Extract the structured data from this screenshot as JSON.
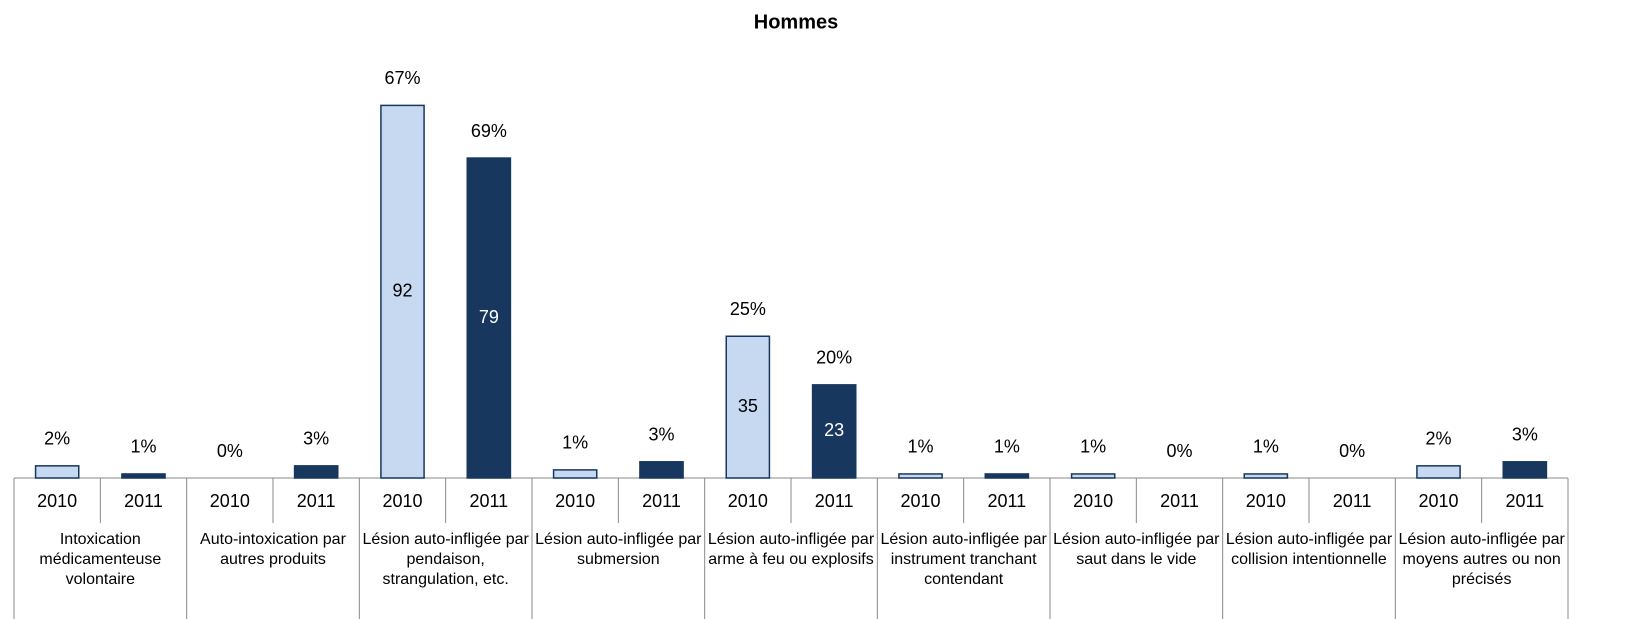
{
  "chart_data": {
    "type": "grouped-bar",
    "title": "Hommes",
    "categories": [
      "Intoxication médicamenteuse volontaire",
      "Auto-intoxication par autres produits",
      "Lésion auto-infligée par pendaison, strangulation, etc.",
      "Lésion auto-infligée par submersion",
      "Lésion auto-infligée par arme à feu ou explosifs",
      "Lésion auto-infligée par instrument tranchant contendant",
      "Lésion auto-infligée par saut dans le vide",
      "Lésion auto-infligée par collision intentionnelle",
      "Lésion auto-infligée par moyens autres ou non précisés"
    ],
    "series": [
      {
        "name": "2010",
        "color": "#c6d9f1",
        "values": [
          3,
          0,
          92,
          2,
          35,
          1,
          1,
          1,
          3
        ],
        "percent_labels": [
          "2%",
          "0%",
          "67%",
          "1%",
          "25%",
          "1%",
          "1%",
          "1%",
          "2%"
        ]
      },
      {
        "name": "2011",
        "color": "#17375e",
        "values": [
          1,
          3,
          79,
          4,
          23,
          1,
          0,
          0,
          4
        ],
        "percent_labels": [
          "1%",
          "3%",
          "69%",
          "3%",
          "20%",
          "1%",
          "0%",
          "0%",
          "3%"
        ]
      }
    ]
  }
}
